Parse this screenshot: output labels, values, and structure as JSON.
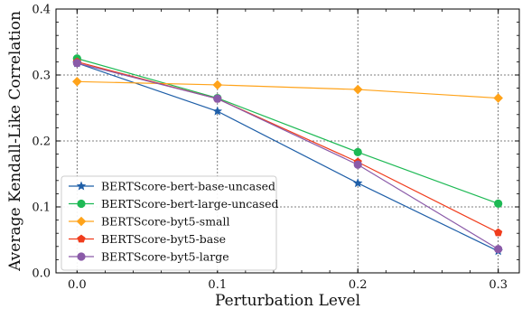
{
  "chart_data": {
    "type": "line",
    "title": "",
    "xlabel": "Perturbation Level",
    "ylabel": "Average Kendall-Like Correlation",
    "x": [
      0.0,
      0.1,
      0.2,
      0.3
    ],
    "x_ticks": [
      "0.0",
      "0.1",
      "0.2",
      "0.3"
    ],
    "y_ticks": [
      "0.0",
      "0.1",
      "0.2",
      "0.3",
      "0.4"
    ],
    "xlim": [
      -0.015,
      0.315
    ],
    "ylim": [
      0.0,
      0.4
    ],
    "grid": true,
    "legend_position": "bottom-left",
    "series": [
      {
        "name": "BERTScore-bert-base-uncased",
        "color": "#1f5fa8",
        "marker": "star",
        "values": [
          0.318,
          0.245,
          0.136,
          0.033
        ]
      },
      {
        "name": "BERTScore-bert-large-uncased",
        "color": "#1db954",
        "marker": "circle",
        "values": [
          0.325,
          0.265,
          0.183,
          0.105
        ]
      },
      {
        "name": "BERTScore-byt5-small",
        "color": "#ffa31a",
        "marker": "diamond",
        "values": [
          0.29,
          0.285,
          0.278,
          0.265
        ]
      },
      {
        "name": "BERTScore-byt5-base",
        "color": "#f03c1c",
        "marker": "pentagon",
        "values": [
          0.32,
          0.264,
          0.168,
          0.061
        ]
      },
      {
        "name": "BERTScore-byt5-large",
        "color": "#8a5aa8",
        "marker": "circle",
        "values": [
          0.318,
          0.264,
          0.164,
          0.036
        ]
      }
    ]
  }
}
